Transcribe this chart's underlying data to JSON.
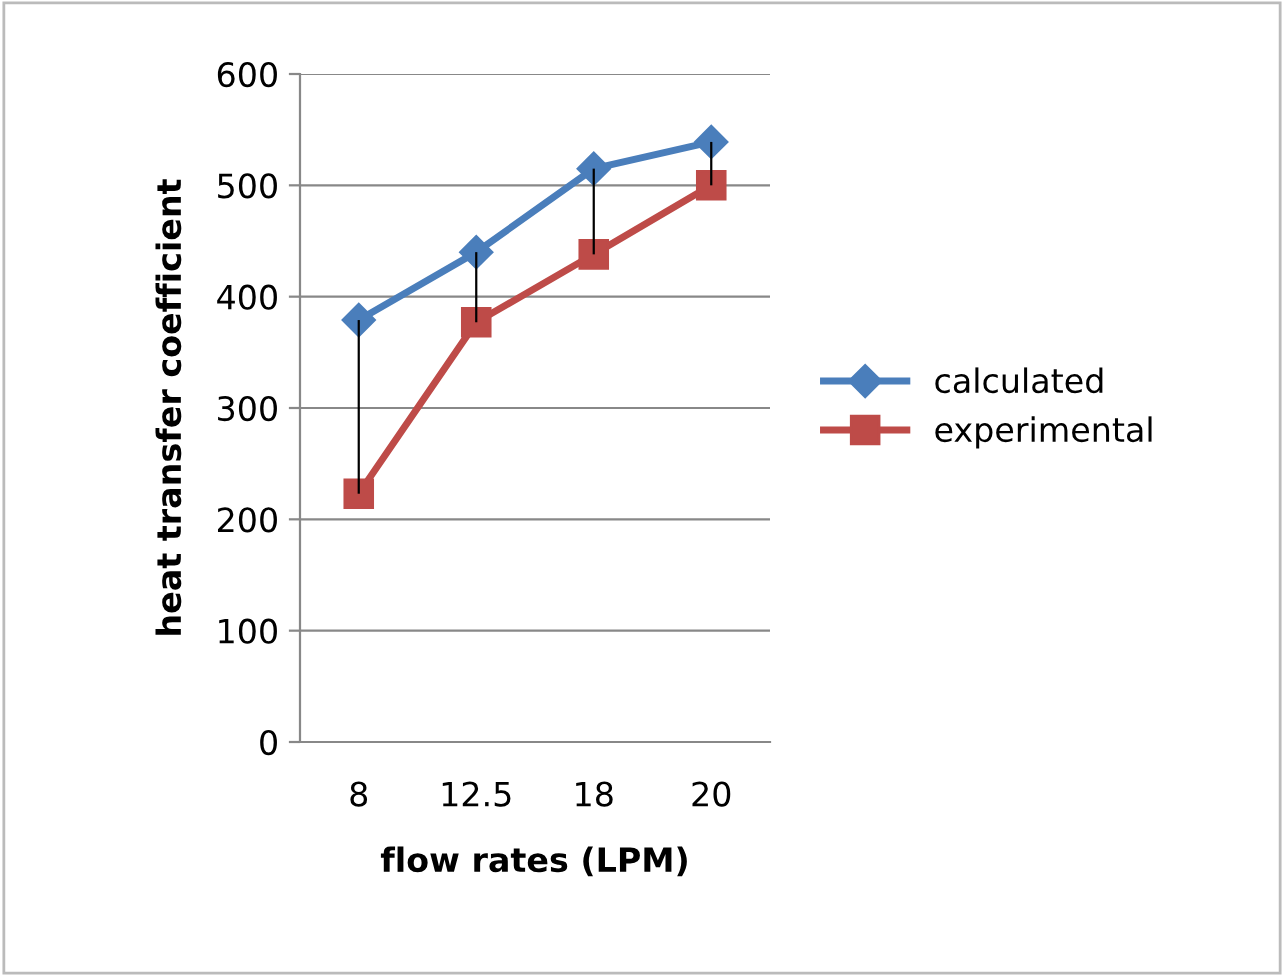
{
  "chart_data": {
    "type": "line",
    "xlabel": "flow rates (LPM)",
    "ylabel": "heat transfer coefficient",
    "categories": [
      "8",
      "12.5",
      "18",
      "20"
    ],
    "series": [
      {
        "name": "calculated",
        "color": "#4a7ebb",
        "marker": "diamond",
        "values": [
          379,
          440,
          515,
          539
        ]
      },
      {
        "name": "experimental",
        "color": "#be4b48",
        "marker": "square",
        "values": [
          223,
          377,
          438,
          500
        ],
        "errors": [
          [
            223,
            379
          ],
          [
            377,
            440
          ],
          [
            438,
            515
          ],
          [
            500,
            539
          ]
        ]
      }
    ],
    "ylim": [
      0,
      600
    ],
    "yticks": [
      0,
      100,
      200,
      300,
      400,
      500,
      600
    ],
    "grid": "y",
    "legend": "right",
    "line_style": "solid"
  }
}
